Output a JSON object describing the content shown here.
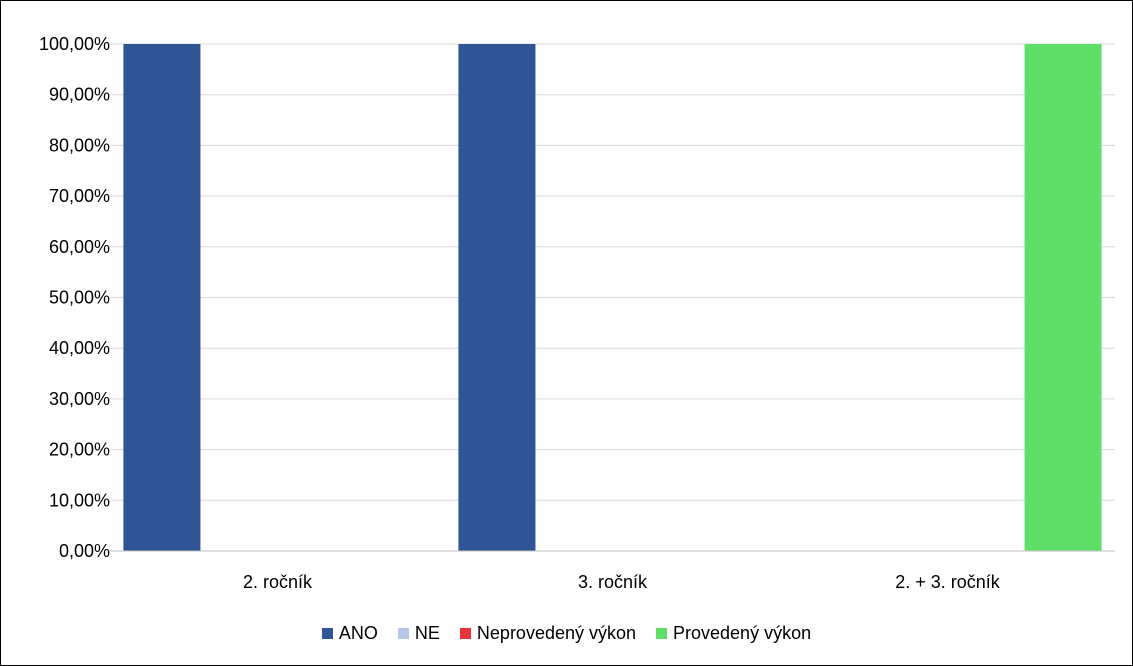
{
  "chart_data": {
    "type": "bar",
    "categories": [
      "2. ročník",
      "3. ročník",
      "2. + 3. ročník"
    ],
    "series": [
      {
        "name": "ANO",
        "color": "#2f5597",
        "values": [
          100,
          100,
          0
        ]
      },
      {
        "name": "NE",
        "color": "#b4c7e7",
        "values": [
          0,
          0,
          0
        ]
      },
      {
        "name": "Neprovedený výkon",
        "color": "#e8323c",
        "values": [
          0,
          0,
          0
        ]
      },
      {
        "name": "Provedený výkon",
        "color": "#5fde68",
        "values": [
          0,
          0,
          100
        ]
      }
    ],
    "ylim": [
      0,
      100
    ],
    "yticks": [
      "0,00%",
      "10,00%",
      "20,00%",
      "30,00%",
      "40,00%",
      "50,00%",
      "60,00%",
      "70,00%",
      "80,00%",
      "90,00%",
      "100,00%"
    ],
    "grid": true,
    "legend_position": "bottom"
  }
}
